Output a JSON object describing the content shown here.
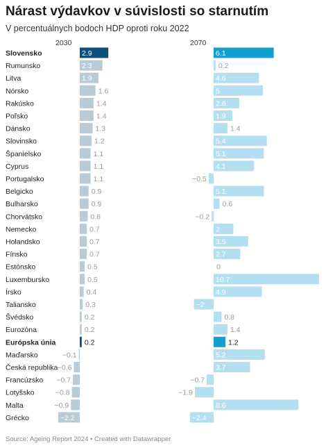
{
  "title": "Nárast výdavkov v súvislosti so starnutím",
  "subtitle": "V percentuálnych bodoch HDP oproti roku 2022",
  "source": "Source: Ageing Report 2024 • Created with Datawrapper",
  "colors": {
    "col1_normal": "#b9cbd6",
    "col1_highlight": "#0d4f77",
    "col2_normal": "#b3dff0",
    "col2_highlight": "#159fcf",
    "label_inside": "#ffffff",
    "label_outside": "#999999"
  },
  "chart_data": {
    "type": "bar",
    "orientation": "horizontal",
    "series": [
      {
        "name": "2030",
        "values": [
          2.9,
          2.3,
          1.9,
          1.6,
          1.4,
          1.4,
          1.3,
          1.2,
          1.1,
          1.1,
          1.1,
          0.9,
          0.9,
          0.8,
          0.7,
          0.7,
          0.7,
          0.5,
          0.5,
          0.4,
          0.3,
          0.2,
          0.2,
          0.2,
          -0.1,
          -0.6,
          -0.7,
          -0.8,
          -0.9,
          -2.2
        ]
      },
      {
        "name": "2070",
        "values": [
          6.1,
          0.2,
          4.6,
          5,
          2.6,
          1.9,
          1.4,
          5.4,
          5.1,
          4.1,
          -0.5,
          5.1,
          0.6,
          -0.2,
          2,
          3.5,
          2.7,
          0,
          10.7,
          4.9,
          -2,
          0.8,
          1.4,
          1.2,
          5.2,
          3.7,
          -0.7,
          -1.9,
          8.6,
          -2.4
        ]
      }
    ],
    "categories": [
      "Slovensko",
      "Rumunsko",
      "Litva",
      "Nórsko",
      "Rakúsko",
      "Poľsko",
      "Dánsko",
      "Slovinsko",
      "Španielsko",
      "Cyprus",
      "Portugalsko",
      "Belgicko",
      "Bulharsko",
      "Chorvátsko",
      "Nemecko",
      "Holandsko",
      "Fínsko",
      "Estónsko",
      "Luxembursko",
      "Írsko",
      "Taliansko",
      "Švédsko",
      "Eurozóna",
      "Európska únia",
      "Maďarsko",
      "Česká republika",
      "Francúzsko",
      "Lotyšsko",
      "Malta",
      "Grécko"
    ],
    "highlight": [
      "Slovensko",
      "Európska únia"
    ]
  }
}
